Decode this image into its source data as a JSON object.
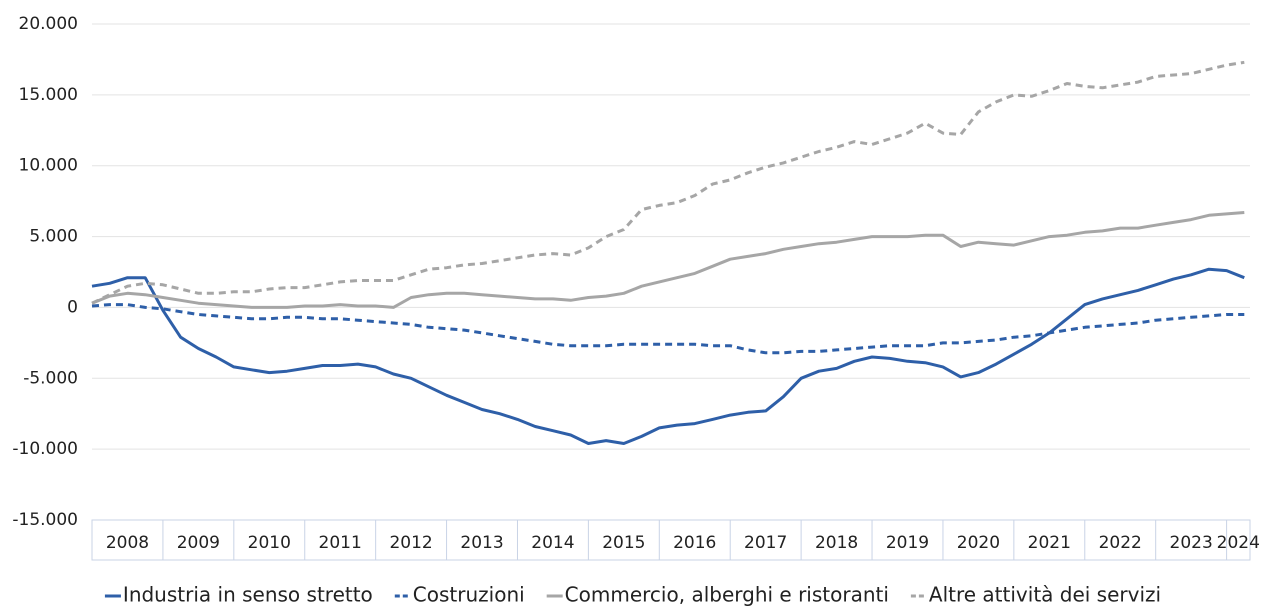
{
  "chart_data": {
    "type": "line",
    "xlim": [
      2008,
      2024.33
    ],
    "xticks": [
      2008,
      2009,
      2010,
      2011,
      2012,
      2013,
      2014,
      2015,
      2016,
      2017,
      2018,
      2019,
      2020,
      2021,
      2022,
      2023,
      2024
    ],
    "categories": [
      "2008",
      "2009",
      "2010",
      "2011",
      "2012",
      "2013",
      "2014",
      "2015",
      "2016",
      "2017",
      "2018",
      "2019",
      "2020",
      "2021",
      "2022",
      "2023",
      "2024"
    ],
    "ylim": [
      -15000,
      20000
    ],
    "yticks": [
      {
        "value": -15000,
        "label": "-15.000"
      },
      {
        "value": -10000,
        "label": "-10.000"
      },
      {
        "value": -5000,
        "label": "-5.000"
      },
      0,
      {
        "value": 5000,
        "label": "5.000"
      },
      {
        "value": 10000,
        "label": "10.000"
      },
      {
        "value": 15000,
        "label": "15.000"
      },
      {
        "value": 20000,
        "label": "20.000"
      }
    ],
    "grid": true,
    "legend": "bottom",
    "x": [
      2008,
      2008.25,
      2008.5,
      2008.75,
      2009,
      2009.25,
      2009.5,
      2009.75,
      2010,
      2010.25,
      2010.5,
      2010.75,
      2011,
      2011.25,
      2011.5,
      2011.75,
      2012,
      2012.25,
      2012.5,
      2012.75,
      2013,
      2013.25,
      2013.5,
      2013.75,
      2014,
      2014.25,
      2014.5,
      2014.75,
      2015,
      2015.25,
      2015.5,
      2015.75,
      2016,
      2016.25,
      2016.5,
      2016.75,
      2017,
      2017.25,
      2017.5,
      2017.75,
      2018,
      2018.25,
      2018.5,
      2018.75,
      2019,
      2019.25,
      2019.5,
      2019.75,
      2020,
      2020.25,
      2020.5,
      2020.75,
      2021,
      2021.25,
      2021.5,
      2021.75,
      2022,
      2022.25,
      2022.5,
      2022.75,
      2023,
      2023.25,
      2023.5,
      2023.75,
      2024,
      2024.25
    ],
    "series": [
      {
        "name": "Industria in senso stretto",
        "color": "#2e5fa8",
        "dashed": false,
        "values": [
          1500,
          1700,
          2100,
          2100,
          -200,
          -2100,
          -2900,
          -3500,
          -4200,
          -4400,
          -4600,
          -4500,
          -4300,
          -4100,
          -4100,
          -4000,
          -4200,
          -4700,
          -5000,
          -5600,
          -6200,
          -6700,
          -7200,
          -7500,
          -7900,
          -8400,
          -8700,
          -9000,
          -9600,
          -9400,
          -9600,
          -9100,
          -8500,
          -8300,
          -8200,
          -7900,
          -7600,
          -7400,
          -7300,
          -6300,
          -5000,
          -4500,
          -4300,
          -3800,
          -3500,
          -3600,
          -3800,
          -3900,
          -4200,
          -4900,
          -4600,
          -4000,
          -3300,
          -2600,
          -1800,
          -800,
          200,
          600,
          900,
          1200,
          1600,
          2000,
          2300,
          2700,
          2600,
          2100
        ]
      },
      {
        "name": "Costruzioni",
        "color": "#2e5fa8",
        "dashed": true,
        "values": [
          100,
          200,
          200,
          0,
          -100,
          -300,
          -500,
          -600,
          -700,
          -800,
          -800,
          -700,
          -700,
          -800,
          -800,
          -900,
          -1000,
          -1100,
          -1200,
          -1400,
          -1500,
          -1600,
          -1800,
          -2000,
          -2200,
          -2400,
          -2600,
          -2700,
          -2700,
          -2700,
          -2600,
          -2600,
          -2600,
          -2600,
          -2600,
          -2700,
          -2700,
          -3000,
          -3200,
          -3200,
          -3100,
          -3100,
          -3000,
          -2900,
          -2800,
          -2700,
          -2700,
          -2700,
          -2500,
          -2500,
          -2400,
          -2300,
          -2100,
          -2000,
          -1800,
          -1600,
          -1400,
          -1300,
          -1200,
          -1100,
          -900,
          -800,
          -700,
          -600,
          -500,
          -500
        ]
      },
      {
        "name": "Commercio, alberghi e ristoranti",
        "color": "#a6a6a6",
        "dashed": false,
        "values": [
          300,
          800,
          1000,
          900,
          700,
          500,
          300,
          200,
          100,
          0,
          0,
          0,
          100,
          100,
          200,
          100,
          100,
          0,
          700,
          900,
          1000,
          1000,
          900,
          800,
          700,
          600,
          600,
          500,
          700,
          800,
          1000,
          1500,
          1800,
          2100,
          2400,
          2900,
          3400,
          3600,
          3800,
          4100,
          4300,
          4500,
          4600,
          4800,
          5000,
          5000,
          5000,
          5100,
          5100,
          4300,
          4600,
          4500,
          4400,
          4700,
          5000,
          5100,
          5300,
          5400,
          5600,
          5600,
          5800,
          6000,
          6200,
          6500,
          6600,
          6700
        ]
      },
      {
        "name": "Altre attività dei servizi",
        "color": "#a6a6a6",
        "dashed": true,
        "values": [
          300,
          900,
          1500,
          1700,
          1600,
          1300,
          1000,
          1000,
          1100,
          1100,
          1300,
          1400,
          1400,
          1600,
          1800,
          1900,
          1900,
          1900,
          2300,
          2700,
          2800,
          3000,
          3100,
          3300,
          3500,
          3700,
          3800,
          3700,
          4200,
          5000,
          5500,
          6900,
          7200,
          7400,
          7900,
          8700,
          9000,
          9500,
          9900,
          10200,
          10600,
          11000,
          11300,
          11700,
          11500,
          11900,
          12300,
          13000,
          12300,
          12200,
          13800,
          14500,
          15000,
          14900,
          15300,
          15800,
          15600,
          15500,
          15700,
          15900,
          16300,
          16400,
          16500,
          16800,
          17100,
          17300
        ]
      }
    ]
  }
}
